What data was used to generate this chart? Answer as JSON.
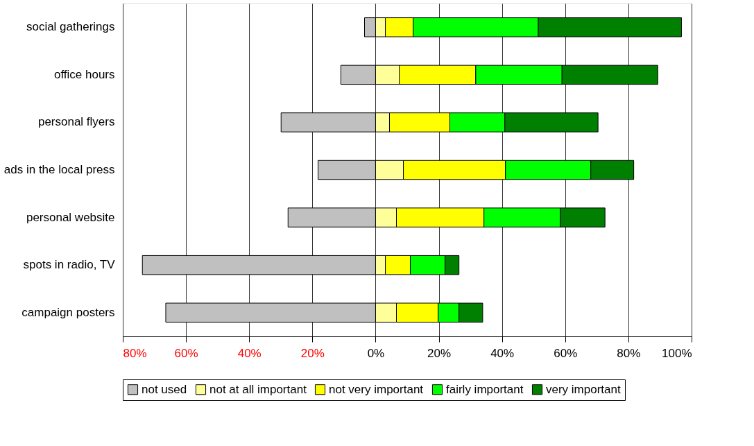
{
  "chart_data": {
    "type": "bar",
    "orientation": "horizontal",
    "stacked": true,
    "categories": [
      "social gatherings",
      "office hours",
      "personal flyers",
      "ads in the local press",
      "personal website",
      "spots in radio, TV",
      "campaign posters"
    ],
    "series": [
      {
        "name": "not used",
        "color": "#c0c0c0",
        "values": [
          -3.5,
          -11,
          -29.9,
          -18.2,
          -27.7,
          -73.8,
          -66.4
        ]
      },
      {
        "name": "not at all important",
        "color": "#ffff99",
        "values": [
          3.1,
          7.5,
          4.4,
          8.8,
          6.6,
          3.1,
          6.6
        ]
      },
      {
        "name": "not very important",
        "color": "#ffff00",
        "values": [
          8.8,
          24.2,
          19.1,
          32.3,
          27.7,
          7.9,
          13.2
        ]
      },
      {
        "name": "fairly important",
        "color": "#00ff00",
        "values": [
          39.6,
          27.3,
          17.4,
          27,
          24.2,
          11,
          6.6
        ]
      },
      {
        "name": "very important",
        "color": "#008000",
        "values": [
          45.3,
          30.3,
          29.5,
          13.6,
          14.1,
          4.4,
          7.5
        ]
      }
    ],
    "xlim": [
      -80,
      100
    ],
    "xticks": [
      {
        "value": -80,
        "label": "80%"
      },
      {
        "value": -60,
        "label": "60%"
      },
      {
        "value": -40,
        "label": "40%"
      },
      {
        "value": -20,
        "label": "20%"
      },
      {
        "value": 0,
        "label": "0%"
      },
      {
        "value": 20,
        "label": "20%"
      },
      {
        "value": 40,
        "label": "40%"
      },
      {
        "value": 60,
        "label": "60%"
      },
      {
        "value": 80,
        "label": "80%"
      },
      {
        "value": 100,
        "label": "100%"
      }
    ],
    "grid": "x",
    "legend": "bottom"
  }
}
